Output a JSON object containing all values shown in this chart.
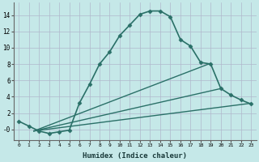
{
  "title": "",
  "xlabel": "Humidex (Indice chaleur)",
  "ylabel": "",
  "bg_color": "#c5e8e8",
  "grid_color": "#b0b8cc",
  "line_color": "#2a7068",
  "xlim": [
    -0.5,
    23.5
  ],
  "ylim": [
    -1.3,
    15.5
  ],
  "xticks": [
    0,
    1,
    2,
    3,
    4,
    5,
    6,
    7,
    8,
    9,
    10,
    11,
    12,
    13,
    14,
    15,
    16,
    17,
    18,
    19,
    20,
    21,
    22,
    23
  ],
  "yticks": [
    0,
    2,
    4,
    6,
    8,
    10,
    12,
    14
  ],
  "ytick_labels": [
    "-0",
    "2",
    "4",
    "6",
    "8",
    "10",
    "12",
    "14"
  ],
  "series": [
    {
      "x": [
        0,
        1,
        2,
        3,
        4,
        5,
        6,
        7,
        8,
        9,
        10,
        11,
        12,
        13,
        14,
        15,
        16,
        17,
        18,
        19,
        20,
        21,
        22,
        23
      ],
      "y": [
        1.0,
        0.4,
        -0.2,
        -0.5,
        -0.3,
        -0.1,
        3.2,
        5.5,
        8.0,
        9.5,
        11.5,
        12.8,
        14.1,
        14.5,
        14.5,
        13.8,
        11.0,
        10.2,
        8.2,
        8.0,
        5.0,
        4.2,
        3.6,
        3.1
      ],
      "marker": "D",
      "markersize": 2.5,
      "linewidth": 1.2,
      "linestyle": "-",
      "has_marker": true
    },
    {
      "x": [
        1.5,
        23
      ],
      "y": [
        -0.2,
        3.2
      ],
      "marker": null,
      "markersize": 0,
      "linewidth": 1.0,
      "linestyle": "-",
      "has_marker": false
    },
    {
      "x": [
        1.5,
        20
      ],
      "y": [
        -0.2,
        5.0
      ],
      "marker": null,
      "markersize": 0,
      "linewidth": 1.0,
      "linestyle": "-",
      "has_marker": false
    },
    {
      "x": [
        1.5,
        19
      ],
      "y": [
        -0.2,
        8.1
      ],
      "marker": null,
      "markersize": 0,
      "linewidth": 1.0,
      "linestyle": "-",
      "has_marker": false
    }
  ]
}
